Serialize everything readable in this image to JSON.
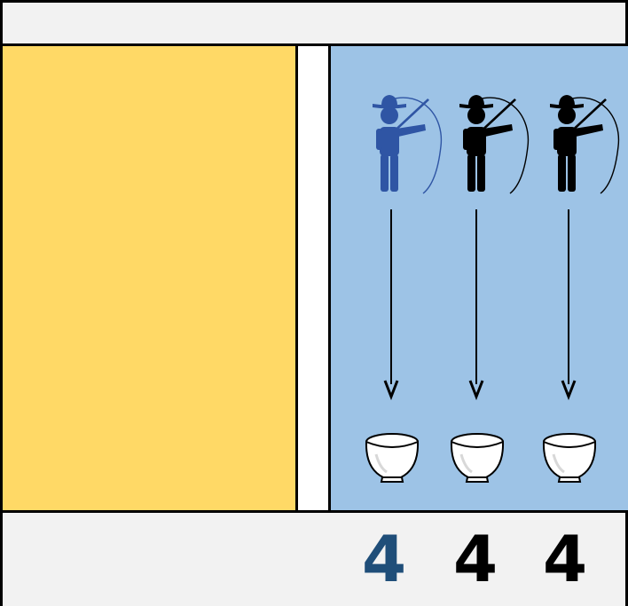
{
  "colors": {
    "yellow_panel": "#ffd966",
    "blue_panel": "#9dc3e6",
    "bars": "#f2f2f2",
    "highlight_fisher": "#2f55a4",
    "highlight_count": "#1f4e79",
    "default": "#000000"
  },
  "columns": [
    {
      "icon": "fisherman-icon",
      "target": "bowl-icon",
      "highlighted": true,
      "count": "4"
    },
    {
      "icon": "fisherman-icon",
      "target": "bowl-icon",
      "highlighted": false,
      "count": "4"
    },
    {
      "icon": "fisherman-icon",
      "target": "bowl-icon",
      "highlighted": false,
      "count": "4"
    }
  ]
}
